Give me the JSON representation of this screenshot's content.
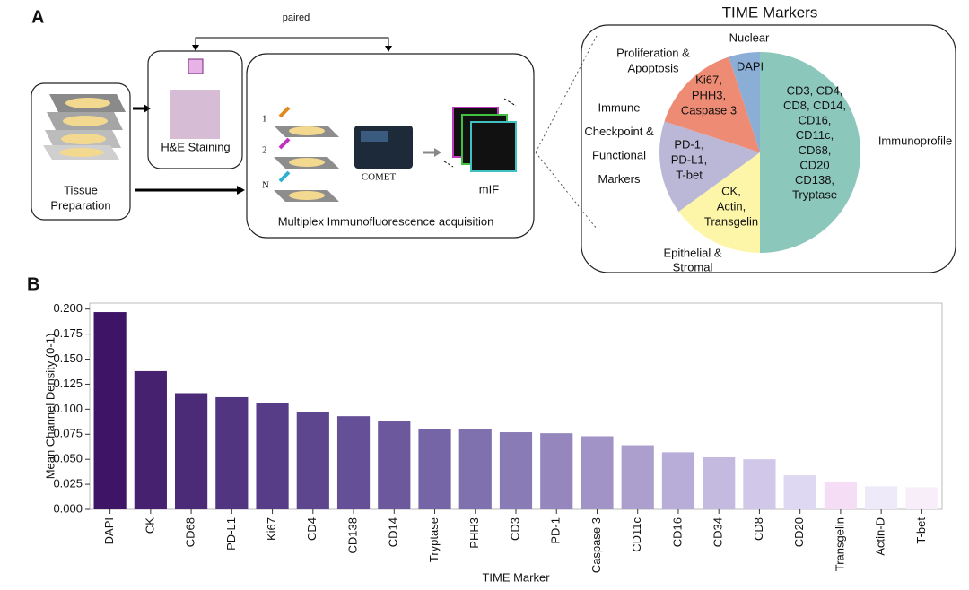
{
  "panel_labels": [
    "A",
    "B"
  ],
  "diagram": {
    "paired": "paired",
    "tissue_preparation": [
      "Tissue",
      "Preparation"
    ],
    "he_staining": "H&E Staining",
    "steps": [
      "1",
      "2",
      "N"
    ],
    "comet": "COMET",
    "mif": "mIF",
    "acquisition": "Multiplex Immunofluorescence acquisition"
  },
  "markers": {
    "title": "TIME Markers",
    "groups": [
      {
        "name": [
          "Immunoprofile"
        ],
        "markers": [
          "CD3, CD4,",
          "CD8, CD14,",
          "CD16,",
          "CD11c,",
          "CD68,",
          "CD20",
          "CD138,",
          "Tryptase"
        ]
      },
      {
        "name": [
          "Epithelial &",
          "Stromal"
        ],
        "markers": [
          "CK,",
          "Actin,",
          "Transgelin"
        ]
      },
      {
        "name": [
          "Immune",
          "Checkpoint &",
          "Functional",
          "Markers"
        ],
        "markers": [
          "PD-1,",
          "PD-L1,",
          "T-bet"
        ]
      },
      {
        "name": [
          "Proliferation &",
          "Apoptosis"
        ],
        "markers": [
          "Ki67,",
          "PHH3,",
          "Caspase 3"
        ]
      },
      {
        "name": [
          "Nuclear"
        ],
        "markers": [
          "DAPI"
        ]
      }
    ]
  },
  "chart_data": {
    "type": "bar",
    "xlabel": "TIME Marker",
    "ylabel": "Mean Channel Density (0-1)",
    "categories": [
      "DAPI",
      "CK",
      "CD68",
      "PD-L1",
      "Ki67",
      "CD4",
      "CD138",
      "CD14",
      "Tryptase",
      "PHH3",
      "CD3",
      "PD-1",
      "Caspase 3",
      "CD11c",
      "CD16",
      "CD34",
      "CD8",
      "CD20",
      "Transgelin",
      "Actin-D",
      "T-bet"
    ],
    "values": [
      0.197,
      0.138,
      0.116,
      0.112,
      0.106,
      0.097,
      0.093,
      0.088,
      0.08,
      0.08,
      0.077,
      0.076,
      0.073,
      0.064,
      0.057,
      0.052,
      0.05,
      0.034,
      0.027,
      0.023,
      0.022
    ],
    "colors": [
      "#3d1466",
      "#45216f",
      "#4b2a78",
      "#513580",
      "#573d87",
      "#5d468e",
      "#654f96",
      "#6c599d",
      "#7564a6",
      "#7f70ae",
      "#897bb5",
      "#9587bd",
      "#a193c6",
      "#ac9fce",
      "#b8acd8",
      "#c4bae0",
      "#d1c8e9",
      "#dfd8f2",
      "#f5ddf5",
      "#eeeaf9",
      "#f7eefa"
    ],
    "ylim": [
      0,
      0.206
    ],
    "yticks": [
      {
        "value": 0,
        "label": "0.000"
      },
      {
        "value": 0.025,
        "label": "0.025"
      },
      {
        "value": 0.05,
        "label": "0.050"
      },
      {
        "value": 0.075,
        "label": "0.075"
      },
      {
        "value": 0.1,
        "label": "0.100"
      },
      {
        "value": 0.125,
        "label": "0.125"
      },
      {
        "value": 0.15,
        "label": "0.150"
      },
      {
        "value": 0.175,
        "label": "0.175"
      },
      {
        "value": 0.2,
        "label": "0.200"
      }
    ]
  }
}
